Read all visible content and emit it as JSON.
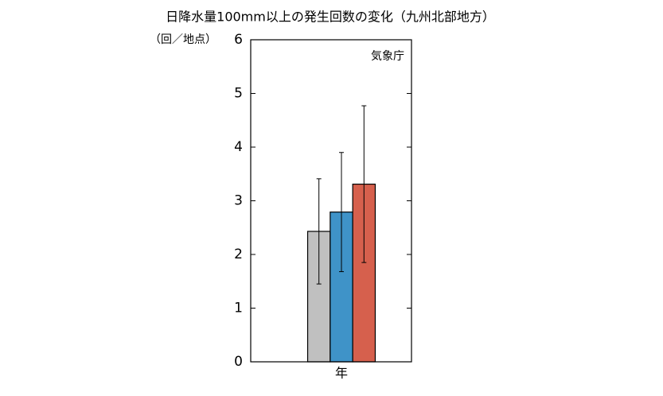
{
  "chart_data": {
    "type": "bar",
    "title": "日降水量100mm以上の発生回数の変化（九州北部地方）",
    "y_label": "（回／地点）",
    "annotation": "気象庁",
    "categories": [
      "年"
    ],
    "series": [
      {
        "color": "#c0c0c0",
        "values": [
          2.43
        ],
        "errors": [
          0.98
        ]
      },
      {
        "color": "#3f93c8",
        "values": [
          2.79
        ],
        "errors": [
          1.11
        ]
      },
      {
        "color": "#d6604d",
        "values": [
          3.31
        ],
        "errors": [
          1.46
        ]
      }
    ],
    "ylim": [
      0,
      6
    ],
    "yticks": [
      0,
      1,
      2,
      3,
      4,
      5,
      6
    ]
  }
}
